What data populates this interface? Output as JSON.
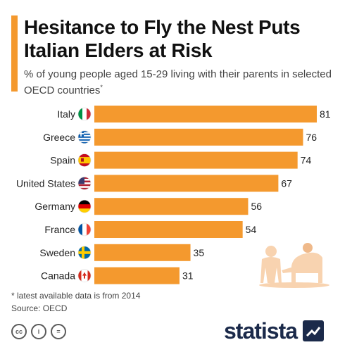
{
  "header": {
    "title": "Hesitance to Fly the Nest Puts Italian Elders at Risk",
    "subtitle": "% of young people aged 15-29 living with their parents in selected OECD countries",
    "subtitle_mark": "*"
  },
  "chart_data": {
    "type": "bar",
    "orientation": "horizontal",
    "categories": [
      "Italy",
      "Greece",
      "Spain",
      "United States",
      "Germany",
      "France",
      "Sweden",
      "Canada"
    ],
    "values": [
      81,
      76,
      74,
      67,
      56,
      54,
      35,
      31
    ],
    "flags": [
      "italy-flag-icon",
      "greece-flag-icon",
      "spain-flag-icon",
      "usa-flag-icon",
      "germany-flag-icon",
      "france-flag-icon",
      "sweden-flag-icon",
      "canada-flag-icon"
    ],
    "data_labels": true,
    "grid": false,
    "bar_color": "#f4992e"
  },
  "footer": {
    "footnote": "* latest available data is from 2014",
    "source": "Source: OECD",
    "license_icons": [
      "cc-icon",
      "by-icon",
      "nd-icon"
    ],
    "license_glyphs": [
      "cc",
      "i",
      "="
    ],
    "brand": "statista"
  },
  "colors": {
    "accent": "#f4992e",
    "illustration": "#f8d3b0",
    "brand": "#1b2a4a"
  }
}
